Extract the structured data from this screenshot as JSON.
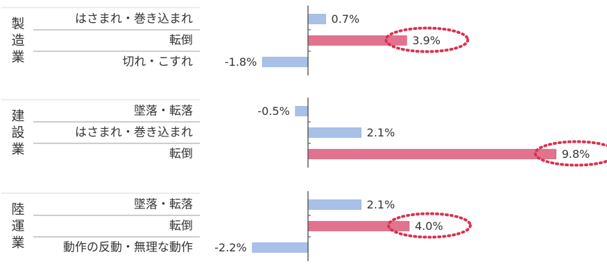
{
  "chart_data": {
    "type": "bar",
    "orientation": "horizontal",
    "title": "",
    "xlabel": "",
    "ylabel": "",
    "xlim": [
      -2.5,
      10.5
    ],
    "grid": false,
    "legend": "none",
    "colors": {
      "positive": "#a9c1e8",
      "negative": "#a9c1e8",
      "highlight": "#e2738f",
      "annotation": "#d8324f"
    },
    "groups": [
      {
        "name": "製造業",
        "items": [
          {
            "category": "はさまれ・巻き込まれ",
            "value": 0.7,
            "label": "0.7%",
            "highlight": false
          },
          {
            "category": "転倒",
            "value": 3.9,
            "label": "3.9%",
            "highlight": true
          },
          {
            "category": "切れ・こすれ",
            "value": -1.8,
            "label": "-1.8%",
            "highlight": false
          }
        ]
      },
      {
        "name": "建設業",
        "items": [
          {
            "category": "墜落・転落",
            "value": -0.5,
            "label": "-0.5%",
            "highlight": false
          },
          {
            "category": "はさまれ・巻き込まれ",
            "value": 2.1,
            "label": "2.1%",
            "highlight": false
          },
          {
            "category": "転倒",
            "value": 9.8,
            "label": "9.8%",
            "highlight": true
          }
        ]
      },
      {
        "name": "陸運業",
        "items": [
          {
            "category": "墜落・転落",
            "value": 2.1,
            "label": "2.1%",
            "highlight": false
          },
          {
            "category": "転倒",
            "value": 4.0,
            "label": "4.0%",
            "highlight": true
          },
          {
            "category": "動作の反動・無理な動作",
            "value": -2.2,
            "label": "-2.2%",
            "highlight": false
          }
        ]
      }
    ]
  }
}
